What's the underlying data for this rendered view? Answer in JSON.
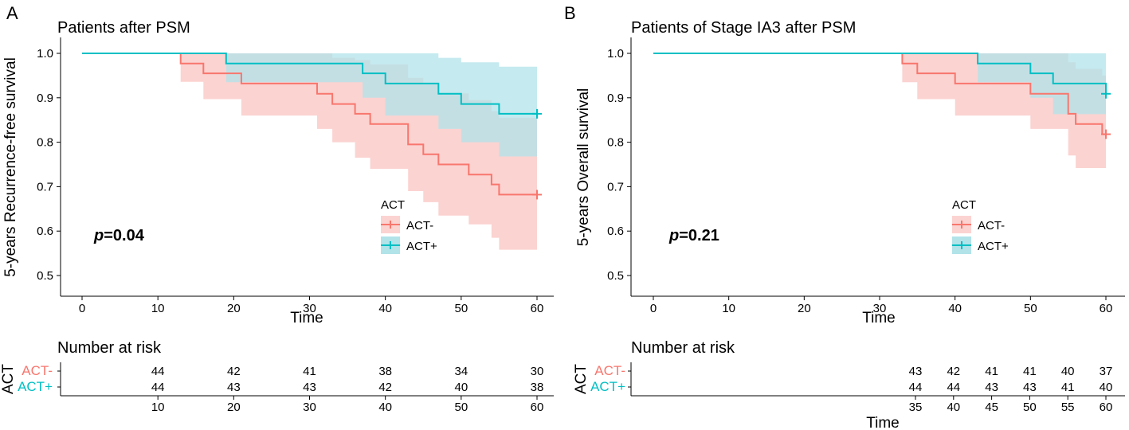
{
  "chart_data": [
    {
      "type": "line",
      "subtype": "kaplan-meier",
      "panel_label": "A",
      "title": "Patients after PSM",
      "xlabel": "Time",
      "ylabel": "5-years Recurrence-free survival",
      "xlim": [
        0,
        60
      ],
      "ylim": [
        0.5,
        1.0
      ],
      "xticks": [
        0,
        10,
        20,
        30,
        40,
        50,
        60
      ],
      "yticks": [
        0.5,
        0.6,
        0.7,
        0.8,
        0.9,
        1.0
      ],
      "ytick_labels": [
        "0.5",
        "0.6",
        "0.7",
        "0.8",
        "0.9",
        "1.0"
      ],
      "p_label": "p",
      "p_value": "=0.04",
      "legend": {
        "title": "ACT",
        "position": "right-middle"
      },
      "series": [
        {
          "name": "ACT-",
          "color": "#F8766D",
          "fill": "#FBD3D1",
          "steps": [
            [
              0,
              1.0
            ],
            [
              13,
              0.977
            ],
            [
              16,
              0.955
            ],
            [
              21,
              0.932
            ],
            [
              31,
              0.909
            ],
            [
              33,
              0.886
            ],
            [
              36,
              0.864
            ],
            [
              38,
              0.841
            ],
            [
              43,
              0.795
            ],
            [
              45,
              0.773
            ],
            [
              47,
              0.75
            ],
            [
              51,
              0.727
            ],
            [
              54,
              0.705
            ],
            [
              55,
              0.682
            ],
            [
              60,
              0.682
            ]
          ],
          "ci_upper": [
            [
              0,
              1.0
            ],
            [
              13,
              1.0
            ],
            [
              16,
              1.0
            ],
            [
              21,
              1.0
            ],
            [
              31,
              1.0
            ],
            [
              33,
              0.99
            ],
            [
              36,
              0.985
            ],
            [
              38,
              0.975
            ],
            [
              43,
              0.945
            ],
            [
              45,
              0.93
            ],
            [
              47,
              0.91
            ],
            [
              51,
              0.895
            ],
            [
              54,
              0.87
            ],
            [
              55,
              0.855
            ],
            [
              60,
              0.855
            ]
          ],
          "ci_lower": [
            [
              0,
              1.0
            ],
            [
              13,
              0.936
            ],
            [
              16,
              0.897
            ],
            [
              21,
              0.86
            ],
            [
              31,
              0.83
            ],
            [
              33,
              0.8
            ],
            [
              36,
              0.765
            ],
            [
              38,
              0.74
            ],
            [
              43,
              0.69
            ],
            [
              45,
              0.665
            ],
            [
              47,
              0.635
            ],
            [
              51,
              0.615
            ],
            [
              54,
              0.585
            ],
            [
              55,
              0.558
            ],
            [
              60,
              0.558
            ]
          ],
          "censor": [
            [
              60,
              0.682
            ]
          ]
        },
        {
          "name": "ACT+",
          "color": "#00BFC4",
          "fill": "#B1E3E9",
          "steps": [
            [
              0,
              1.0
            ],
            [
              19,
              0.977
            ],
            [
              37,
              0.955
            ],
            [
              40,
              0.932
            ],
            [
              47,
              0.909
            ],
            [
              50,
              0.886
            ],
            [
              55,
              0.864
            ],
            [
              60,
              0.864
            ]
          ],
          "ci_upper": [
            [
              0,
              1.0
            ],
            [
              19,
              1.0
            ],
            [
              37,
              1.0
            ],
            [
              40,
              1.0
            ],
            [
              47,
              0.99
            ],
            [
              50,
              0.98
            ],
            [
              55,
              0.97
            ],
            [
              60,
              0.97
            ]
          ],
          "ci_lower": [
            [
              0,
              1.0
            ],
            [
              19,
              0.935
            ],
            [
              37,
              0.9
            ],
            [
              40,
              0.86
            ],
            [
              47,
              0.83
            ],
            [
              50,
              0.8
            ],
            [
              55,
              0.768
            ],
            [
              60,
              0.768
            ]
          ],
          "censor": [
            [
              60,
              0.864
            ]
          ]
        }
      ],
      "risk_table": {
        "title": "Number at risk",
        "strata_title": "ACT",
        "times": [
          10,
          20,
          30,
          40,
          50,
          60
        ],
        "xlabel": "",
        "rows": [
          {
            "name": "ACT-",
            "values": [
              "44",
              "42",
              "41",
              "38",
              "34",
              "30"
            ]
          },
          {
            "name": "ACT+",
            "values": [
              "44",
              "43",
              "43",
              "42",
              "40",
              "38"
            ]
          }
        ]
      }
    },
    {
      "type": "line",
      "subtype": "kaplan-meier",
      "panel_label": "B",
      "title": "Patients of Stage IA3 after PSM",
      "xlabel": "Time",
      "ylabel": "5-years Overall survival",
      "xlim": [
        0,
        60
      ],
      "ylim": [
        0.5,
        1.0
      ],
      "xticks": [
        0,
        10,
        20,
        30,
        40,
        50,
        60
      ],
      "yticks": [
        0.5,
        0.6,
        0.7,
        0.8,
        0.9,
        1.0
      ],
      "ytick_labels": [
        "0.5",
        "0.6",
        "0.7",
        "0.8",
        "0.9",
        "1.0"
      ],
      "p_label": "p",
      "p_value": "=0.21",
      "legend": {
        "title": "ACT",
        "position": "right-middle"
      },
      "series": [
        {
          "name": "ACT-",
          "color": "#F8766D",
          "fill": "#FBD3D1",
          "steps": [
            [
              0,
              1.0
            ],
            [
              33,
              0.977
            ],
            [
              35,
              0.955
            ],
            [
              40,
              0.932
            ],
            [
              50,
              0.909
            ],
            [
              55,
              0.864
            ],
            [
              56,
              0.841
            ],
            [
              59.5,
              0.818
            ],
            [
              60,
              0.818
            ]
          ],
          "ci_upper": [
            [
              0,
              1.0
            ],
            [
              33,
              1.0
            ],
            [
              35,
              1.0
            ],
            [
              40,
              1.0
            ],
            [
              50,
              1.0
            ],
            [
              55,
              0.98
            ],
            [
              56,
              0.965
            ],
            [
              59.5,
              0.95
            ],
            [
              60,
              0.95
            ]
          ],
          "ci_lower": [
            [
              0,
              1.0
            ],
            [
              33,
              0.935
            ],
            [
              35,
              0.897
            ],
            [
              40,
              0.86
            ],
            [
              50,
              0.83
            ],
            [
              55,
              0.77
            ],
            [
              56,
              0.742
            ],
            [
              59.5,
              0.742
            ],
            [
              60,
              0.742
            ]
          ],
          "censor": [
            [
              60,
              0.818
            ]
          ]
        },
        {
          "name": "ACT+",
          "color": "#00BFC4",
          "fill": "#B1E3E9",
          "steps": [
            [
              0,
              1.0
            ],
            [
              43,
              0.977
            ],
            [
              50,
              0.955
            ],
            [
              53,
              0.932
            ],
            [
              60,
              0.909
            ]
          ],
          "ci_upper": [
            [
              0,
              1.0
            ],
            [
              43,
              1.0
            ],
            [
              50,
              1.0
            ],
            [
              53,
              1.0
            ],
            [
              60,
              1.0
            ]
          ],
          "ci_lower": [
            [
              0,
              1.0
            ],
            [
              43,
              0.935
            ],
            [
              50,
              0.9
            ],
            [
              53,
              0.863
            ],
            [
              60,
              0.83
            ]
          ],
          "censor": [
            [
              60,
              0.909
            ]
          ]
        }
      ],
      "risk_table": {
        "title": "Number at risk",
        "strata_title": "ACT",
        "times": [
          35,
          40,
          45,
          50,
          55,
          60
        ],
        "xlabel": "Time",
        "rows": [
          {
            "name": "ACT-",
            "values": [
              "43",
              "42",
              "41",
              "41",
              "40",
              "37"
            ]
          },
          {
            "name": "ACT+",
            "values": [
              "44",
              "44",
              "43",
              "43",
              "41",
              "40"
            ]
          }
        ]
      }
    }
  ]
}
